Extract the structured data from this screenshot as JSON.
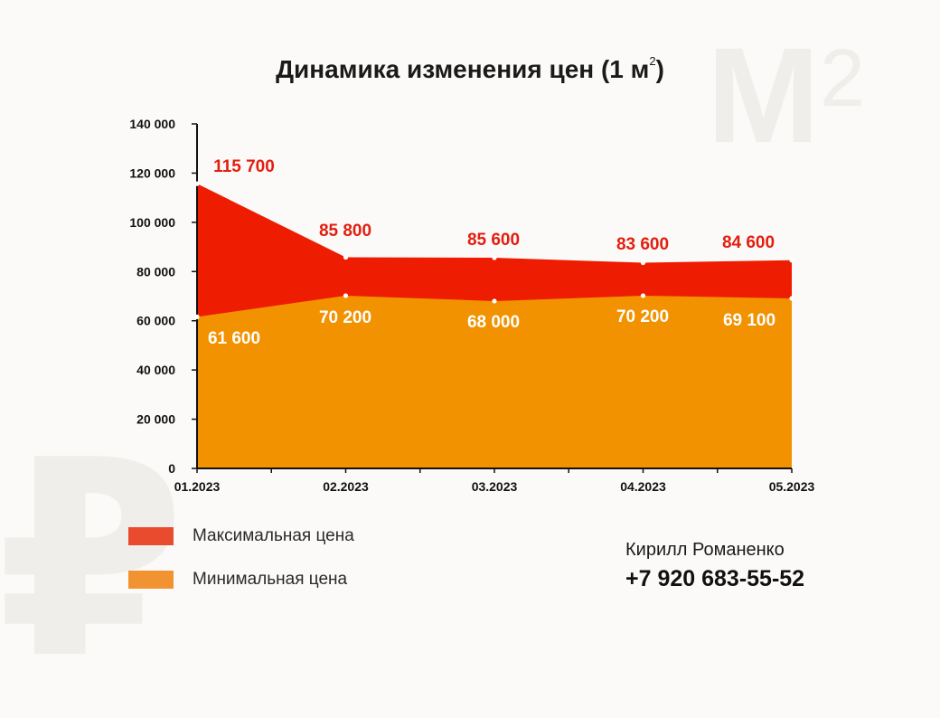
{
  "chart_data": {
    "type": "area",
    "title_main": "Динамика изменения цен (1 м",
    "title_sup": "2",
    "title_close": ")",
    "categories": [
      "01.2023",
      "02.2023",
      "03.2023",
      "04.2023",
      "05.2023"
    ],
    "series": [
      {
        "name": "Максимальная цена",
        "values": [
          115700,
          85800,
          85600,
          83600,
          84600
        ],
        "labels": [
          "115 700",
          "85 800",
          "85 600",
          "83 600",
          "84 600"
        ],
        "color": "#ee1c00",
        "label_color": "#e31e0f"
      },
      {
        "name": "Минимальная цена",
        "values": [
          61600,
          70200,
          68000,
          70200,
          69100
        ],
        "labels": [
          "61 600",
          "70 200",
          "68 000",
          "70 200",
          "69 100"
        ],
        "color": "#f29200",
        "label_color": "#ffffff"
      }
    ],
    "ylim": [
      0,
      140000
    ],
    "yticks": [
      0,
      20000,
      40000,
      60000,
      80000,
      100000,
      120000,
      140000
    ],
    "ytick_labels": [
      "0",
      "20 000",
      "40 000",
      "60 000",
      "80 000",
      "100 000",
      "120 000",
      "140 000"
    ],
    "grid": false,
    "legend_position": "bottom-left"
  },
  "legend": [
    {
      "label": "Максимальная цена",
      "color": "#e94b2e"
    },
    {
      "label": "Минимальная цена",
      "color": "#f29331"
    }
  ],
  "contact": {
    "name": "Кирилл Романенко",
    "phone": "+7 920 683-55-52"
  },
  "watermark": {
    "unit": "M",
    "unit_sup": "2",
    "currency": "₽"
  }
}
